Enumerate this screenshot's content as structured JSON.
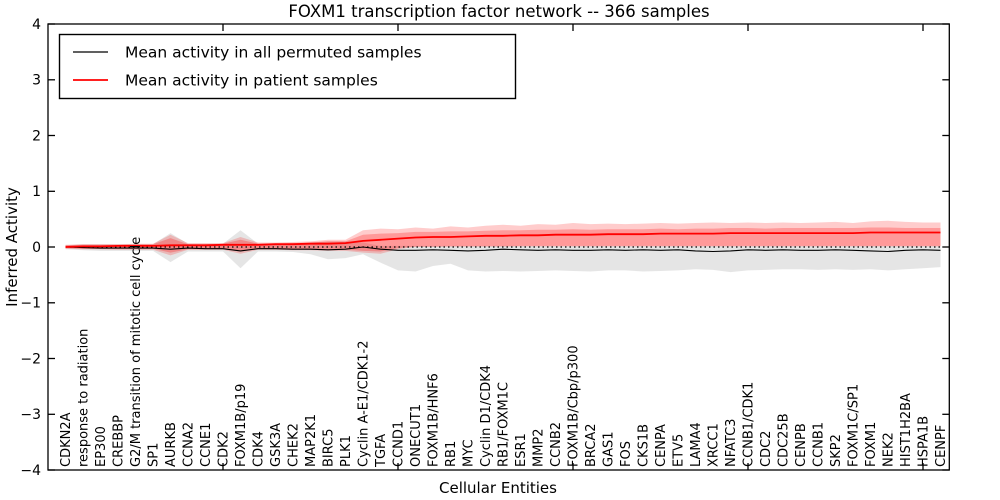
{
  "chart_data": {
    "type": "line",
    "title": "FOXM1 transcription factor network -- 366 samples",
    "xlabel": "Cellular Entities",
    "ylabel": "Inferred Activity",
    "ylim": [
      -4,
      4
    ],
    "yticks": [
      -4,
      -3,
      -2,
      -1,
      0,
      1,
      2,
      3,
      4
    ],
    "xticks": [
      10,
      20,
      30,
      40,
      50
    ],
    "x_range": [
      0,
      51.5
    ],
    "grid": false,
    "legend_position": "upper left",
    "background_color": "#ffffff",
    "zero_line": {
      "style": "dotted",
      "color": "#000000",
      "value": 0
    },
    "categories": [
      "CDKN2A",
      "response to radiation",
      "EP300",
      "CREBBP",
      "G2/M transition of mitotic cell cycle",
      "SP1",
      "AURKB",
      "CCNA2",
      "CCNE1",
      "CDK2",
      "FOXM1B/p19",
      "CDK4",
      "GSK3A",
      "CHEK2",
      "MAP2K1",
      "BIRC5",
      "PLK1",
      "Cyclin A-E1/CDK1-2",
      "TGFA",
      "CCND1",
      "ONECUT1",
      "FOXM1B/HNF6",
      "RB1",
      "MYC",
      "Cyclin D1/CDK4",
      "RB1/FOXM1C",
      "ESR1",
      "MMP2",
      "CCNB2",
      "FOXM1B/Cbp/p300",
      "BRCA2",
      "GAS1",
      "FOS",
      "CKS1B",
      "CENPA",
      "ETV5",
      "LAMA4",
      "XRCC1",
      "NFATC3",
      "CCNB1/CDK1",
      "CDC2",
      "CDC25B",
      "CENPB",
      "CCNB1",
      "SKP2",
      "FOXM1C/SP1",
      "FOXM1",
      "NEK2",
      "HIST1H2BA",
      "HSPA1B",
      "CENPF"
    ],
    "series": [
      {
        "name": "Mean activity in all permuted samples",
        "color": "#000000",
        "width": 1.1,
        "values": [
          0.0,
          -0.01,
          -0.02,
          -0.02,
          -0.02,
          -0.02,
          -0.04,
          -0.02,
          -0.03,
          -0.03,
          -0.07,
          -0.03,
          -0.03,
          -0.04,
          -0.04,
          -0.05,
          -0.04,
          0.0,
          -0.04,
          -0.06,
          -0.06,
          -0.05,
          -0.06,
          -0.07,
          -0.06,
          -0.04,
          -0.05,
          -0.06,
          -0.05,
          -0.06,
          -0.06,
          -0.05,
          -0.06,
          -0.05,
          -0.06,
          -0.05,
          -0.07,
          -0.08,
          -0.07,
          -0.05,
          -0.06,
          -0.05,
          -0.06,
          -0.06,
          -0.05,
          -0.06,
          -0.07,
          -0.08,
          -0.06,
          -0.05,
          -0.06
        ]
      },
      {
        "name": "Mean activity in patient samples",
        "color": "#ff0000",
        "width": 1.8,
        "values": [
          0.0,
          0.01,
          0.01,
          0.02,
          0.02,
          0.02,
          0.03,
          0.03,
          0.03,
          0.04,
          0.04,
          0.04,
          0.05,
          0.05,
          0.06,
          0.06,
          0.07,
          0.11,
          0.13,
          0.15,
          0.17,
          0.18,
          0.18,
          0.19,
          0.2,
          0.2,
          0.21,
          0.21,
          0.22,
          0.22,
          0.22,
          0.23,
          0.23,
          0.23,
          0.24,
          0.24,
          0.24,
          0.24,
          0.25,
          0.25,
          0.25,
          0.25,
          0.25,
          0.25,
          0.25,
          0.25,
          0.26,
          0.26,
          0.26,
          0.26,
          0.26
        ]
      }
    ],
    "bands": [
      {
        "name": "permuted-range",
        "color": "#000000",
        "alpha": 0.1,
        "upper": [
          0.03,
          0.05,
          0.05,
          0.05,
          0.05,
          0.05,
          0.25,
          0.06,
          0.06,
          0.06,
          0.3,
          0.06,
          0.06,
          0.06,
          0.08,
          0.1,
          0.1,
          0.08,
          0.02,
          0.02,
          0.02,
          0.02,
          0.02,
          0.02,
          0.02,
          0.02,
          0.02,
          0.02,
          0.02,
          0.02,
          0.02,
          0.02,
          0.02,
          0.02,
          0.02,
          0.02,
          0.02,
          0.02,
          0.02,
          0.02,
          0.02,
          0.02,
          0.02,
          0.02,
          0.02,
          0.02,
          0.02,
          0.02,
          0.02,
          0.02,
          0.02
        ],
        "lower": [
          -0.04,
          -0.06,
          -0.07,
          -0.07,
          -0.07,
          -0.07,
          -0.27,
          -0.08,
          -0.08,
          -0.08,
          -0.38,
          -0.08,
          -0.08,
          -0.09,
          -0.13,
          -0.22,
          -0.2,
          -0.13,
          -0.28,
          -0.42,
          -0.44,
          -0.34,
          -0.3,
          -0.42,
          -0.44,
          -0.43,
          -0.44,
          -0.43,
          -0.42,
          -0.43,
          -0.44,
          -0.42,
          -0.42,
          -0.44,
          -0.43,
          -0.42,
          -0.4,
          -0.41,
          -0.45,
          -0.42,
          -0.41,
          -0.4,
          -0.4,
          -0.41,
          -0.4,
          -0.41,
          -0.4,
          -0.42,
          -0.4,
          -0.38,
          -0.36
        ]
      },
      {
        "name": "patient-range-outer",
        "color": "#ff0000",
        "alpha": 0.2,
        "upper": [
          0.04,
          0.05,
          0.05,
          0.05,
          0.06,
          0.06,
          0.22,
          0.07,
          0.07,
          0.07,
          0.18,
          0.08,
          0.08,
          0.09,
          0.1,
          0.13,
          0.13,
          0.3,
          0.33,
          0.32,
          0.35,
          0.33,
          0.37,
          0.35,
          0.38,
          0.4,
          0.38,
          0.41,
          0.4,
          0.43,
          0.41,
          0.42,
          0.41,
          0.42,
          0.43,
          0.42,
          0.43,
          0.44,
          0.43,
          0.44,
          0.43,
          0.44,
          0.43,
          0.44,
          0.45,
          0.43,
          0.46,
          0.47,
          0.45,
          0.44,
          0.44
        ],
        "lower": [
          -0.03,
          -0.04,
          -0.04,
          -0.05,
          -0.05,
          -0.05,
          -0.15,
          -0.05,
          -0.05,
          -0.05,
          -0.12,
          -0.05,
          -0.05,
          -0.06,
          -0.06,
          -0.07,
          -0.07,
          -0.1,
          -0.12,
          -0.04,
          0.0,
          0.0,
          0.01,
          0.01,
          0.01,
          0.01,
          0.02,
          0.02,
          0.02,
          0.02,
          0.02,
          0.02,
          0.02,
          0.02,
          0.02,
          0.02,
          0.02,
          0.02,
          0.02,
          0.02,
          0.02,
          0.02,
          0.02,
          0.02,
          0.02,
          0.02,
          0.02,
          0.02,
          0.02,
          0.02,
          0.02
        ]
      },
      {
        "name": "patient-range-inner",
        "color": "#ff0000",
        "alpha": 0.25,
        "upper": [
          0.03,
          0.04,
          0.04,
          0.04,
          0.05,
          0.05,
          0.16,
          0.05,
          0.05,
          0.06,
          0.13,
          0.06,
          0.06,
          0.07,
          0.08,
          0.1,
          0.1,
          0.22,
          0.24,
          0.25,
          0.27,
          0.27,
          0.28,
          0.28,
          0.29,
          0.3,
          0.3,
          0.31,
          0.31,
          0.32,
          0.31,
          0.32,
          0.32,
          0.32,
          0.33,
          0.32,
          0.33,
          0.33,
          0.34,
          0.34,
          0.33,
          0.34,
          0.34,
          0.34,
          0.34,
          0.34,
          0.35,
          0.35,
          0.34,
          0.34,
          0.34
        ],
        "lower": [
          -0.02,
          -0.03,
          -0.03,
          -0.03,
          -0.03,
          -0.03,
          -0.1,
          -0.04,
          -0.04,
          -0.04,
          -0.08,
          -0.04,
          -0.04,
          -0.04,
          -0.05,
          -0.05,
          -0.05,
          -0.07,
          -0.08,
          -0.02,
          0.01,
          0.01,
          0.01,
          0.01,
          0.01,
          0.01,
          0.01,
          0.01,
          0.01,
          0.01,
          0.01,
          0.01,
          0.01,
          0.01,
          0.01,
          0.01,
          0.01,
          0.01,
          0.01,
          0.01,
          0.01,
          0.01,
          0.01,
          0.01,
          0.01,
          0.01,
          0.01,
          0.01,
          0.01,
          0.01,
          0.01
        ]
      }
    ]
  }
}
